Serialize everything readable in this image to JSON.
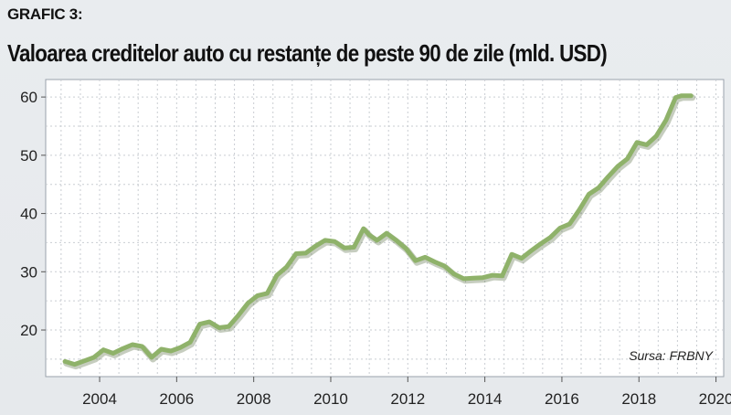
{
  "header": {
    "label": "GRAFIC 3:",
    "title": "Valoarea creditelor auto cu restanțe de peste 90 de zile (mld. USD)"
  },
  "source": "Sursa: FRBNY",
  "chart_data": {
    "type": "line",
    "title": "Valoarea creditelor auto cu restanțe de peste 90 de zile (mld. USD)",
    "xlabel": "",
    "ylabel": "",
    "xlim": [
      2002.6,
      2020.2
    ],
    "ylim": [
      12,
      63
    ],
    "x_ticks": [
      2004,
      2006,
      2008,
      2010,
      2012,
      2014,
      2016,
      2018,
      2020
    ],
    "y_ticks": [
      20,
      30,
      40,
      50,
      60
    ],
    "grid": true,
    "line_color": "#8fb26a",
    "series": [
      {
        "name": "",
        "x": [
          2003.1,
          2003.35,
          2003.6,
          2003.85,
          2004.1,
          2004.35,
          2004.6,
          2004.85,
          2005.1,
          2005.35,
          2005.6,
          2005.85,
          2006.1,
          2006.35,
          2006.6,
          2006.85,
          2007.1,
          2007.35,
          2007.6,
          2007.85,
          2008.1,
          2008.35,
          2008.6,
          2008.85,
          2009.1,
          2009.35,
          2009.6,
          2009.85,
          2010.1,
          2010.35,
          2010.6,
          2010.85,
          2011.0,
          2011.2,
          2011.45,
          2011.7,
          2011.95,
          2012.2,
          2012.45,
          2012.7,
          2012.95,
          2013.2,
          2013.45,
          2013.7,
          2013.95,
          2014.2,
          2014.45,
          2014.7,
          2014.95,
          2015.2,
          2015.45,
          2015.7,
          2015.95,
          2016.2,
          2016.45,
          2016.7,
          2016.95,
          2017.2,
          2017.45,
          2017.7,
          2017.95,
          2018.2,
          2018.45,
          2018.7,
          2018.95,
          2019.1,
          2019.35
        ],
        "y": [
          14.6,
          14.1,
          14.7,
          15.3,
          16.6,
          16.0,
          16.8,
          17.5,
          17.2,
          15.3,
          16.7,
          16.4,
          17.0,
          17.9,
          21.0,
          21.4,
          20.4,
          20.6,
          22.5,
          24.6,
          25.9,
          26.3,
          29.4,
          30.8,
          33.1,
          33.2,
          34.4,
          35.4,
          35.2,
          34.1,
          34.2,
          37.4,
          36.3,
          35.4,
          36.6,
          35.4,
          34.0,
          31.9,
          32.5,
          31.7,
          31.0,
          29.6,
          28.8,
          28.9,
          29.0,
          29.4,
          29.3,
          33.0,
          32.3,
          33.6,
          34.8,
          35.9,
          37.5,
          38.2,
          40.6,
          43.3,
          44.4,
          46.3,
          48.1,
          49.4,
          52.2,
          51.8,
          53.3,
          56.0,
          59.9,
          60.2,
          60.2
        ]
      }
    ]
  }
}
